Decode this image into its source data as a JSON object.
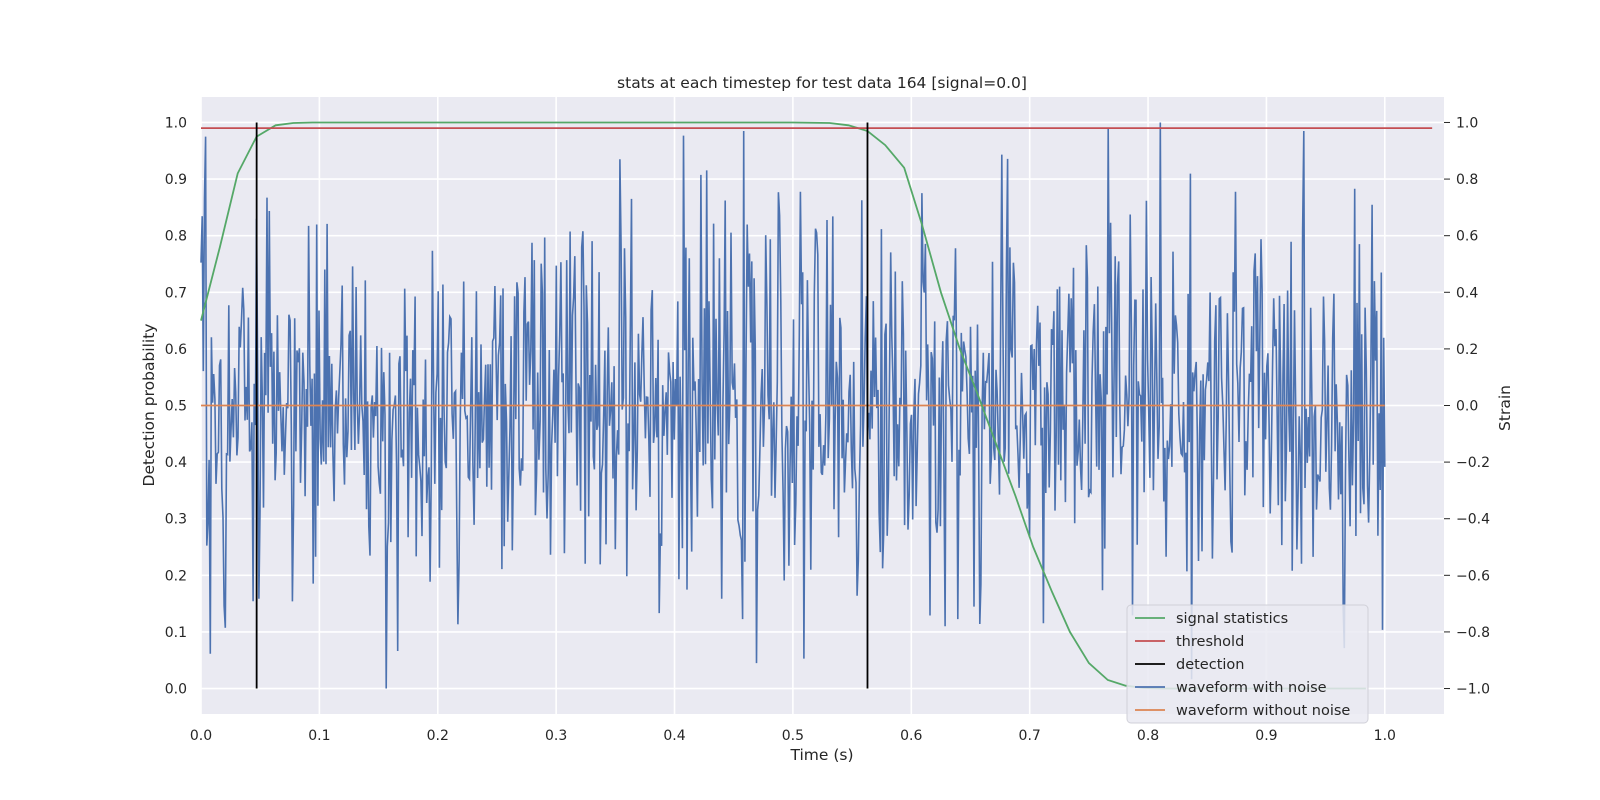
{
  "chart_data": {
    "type": "line",
    "title": "stats at each timestep for test data 164 [signal=0.0]",
    "xlabel": "Time (s)",
    "ylabel_left": "Detection probability",
    "ylabel_right": "Strain",
    "xlim": [
      0.0,
      1.05
    ],
    "ylim_left": [
      -0.045,
      1.045
    ],
    "ylim_right": [
      -1.09,
      1.09
    ],
    "x_ticks": [
      "0.0",
      "0.1",
      "0.2",
      "0.3",
      "0.4",
      "0.5",
      "0.6",
      "0.7",
      "0.8",
      "0.9",
      "1.0"
    ],
    "left_ticks": [
      "0.0",
      "0.1",
      "0.2",
      "0.3",
      "0.4",
      "0.5",
      "0.6",
      "0.7",
      "0.8",
      "0.9",
      "1.0"
    ],
    "right_ticks": [
      "−1.0",
      "−0.8",
      "−0.6",
      "−0.4",
      "−0.2",
      "0.0",
      "0.2",
      "0.4",
      "0.6",
      "0.8",
      "1.0"
    ],
    "grid": true,
    "legend_position": "lower right",
    "series": [
      {
        "name": "signal statistics",
        "axis": "left",
        "color": "#55a868",
        "x": [
          0.0,
          0.016,
          0.031,
          0.047,
          0.063,
          0.078,
          0.094,
          0.5,
          0.531,
          0.547,
          0.563,
          0.578,
          0.594,
          0.609,
          0.625,
          0.641,
          0.656,
          0.672,
          0.688,
          0.703,
          0.719,
          0.734,
          0.75,
          0.766,
          0.781,
          0.797,
          0.812,
          0.828,
          0.984
        ],
        "y": [
          0.65,
          0.78,
          0.91,
          0.975,
          0.995,
          0.999,
          1.0,
          1.0,
          0.999,
          0.995,
          0.985,
          0.96,
          0.92,
          0.82,
          0.7,
          0.6,
          0.52,
          0.43,
          0.34,
          0.25,
          0.17,
          0.1,
          0.045,
          0.015,
          0.005,
          0.001,
          0.0,
          0.0,
          0.0
        ]
      },
      {
        "name": "threshold",
        "axis": "left",
        "color": "#c44e52",
        "x": [
          0.0,
          1.04
        ],
        "y": [
          0.99,
          0.99
        ]
      },
      {
        "name": "detection",
        "axis": "left",
        "color": "#000000",
        "segments": [
          {
            "x": 0.047,
            "y0": 0.0,
            "y1": 1.0
          },
          {
            "x": 0.563,
            "y0": 0.0,
            "y1": 1.0
          }
        ]
      },
      {
        "name": "waveform with noise",
        "axis": "right",
        "color": "#4c72b0",
        "x_range": [
          0.0,
          1.0
        ],
        "seed": 164,
        "std": 0.32,
        "spikes": [
          {
            "x": 0.004,
            "y": 0.95
          },
          {
            "x": 0.81,
            "y": 1.0
          },
          {
            "x": 0.156,
            "y": -1.0
          },
          {
            "x": 0.469,
            "y": -0.91
          },
          {
            "x": 0.766,
            "y": 0.98
          },
          {
            "x": 0.354,
            "y": 0.87
          }
        ]
      },
      {
        "name": "waveform without noise",
        "axis": "right",
        "color": "#dd8452",
        "x": [
          0.0,
          1.0
        ],
        "y": [
          0.0,
          0.0
        ]
      }
    ]
  }
}
